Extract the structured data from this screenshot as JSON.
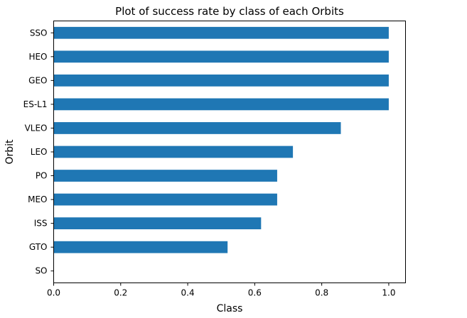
{
  "chart_data": {
    "type": "bar",
    "orientation": "horizontal",
    "title": "Plot of success rate by class of each Orbits",
    "xlabel": "Class",
    "ylabel": "Orbit",
    "categories": [
      "SSO",
      "HEO",
      "GEO",
      "ES-L1",
      "VLEO",
      "LEO",
      "PO",
      "MEO",
      "ISS",
      "GTO",
      "SO"
    ],
    "values": [
      1.0,
      1.0,
      1.0,
      1.0,
      0.857,
      0.714,
      0.667,
      0.667,
      0.619,
      0.519,
      0.0
    ],
    "xlim": [
      0.0,
      1.05
    ],
    "xticks": [
      "0.0",
      "0.2",
      "0.4",
      "0.6",
      "0.8",
      "1.0"
    ],
    "xtick_values": [
      0.0,
      0.2,
      0.4,
      0.6,
      0.8,
      1.0
    ],
    "grid": false,
    "legend": "none",
    "bar_color": "#1f77b4"
  }
}
